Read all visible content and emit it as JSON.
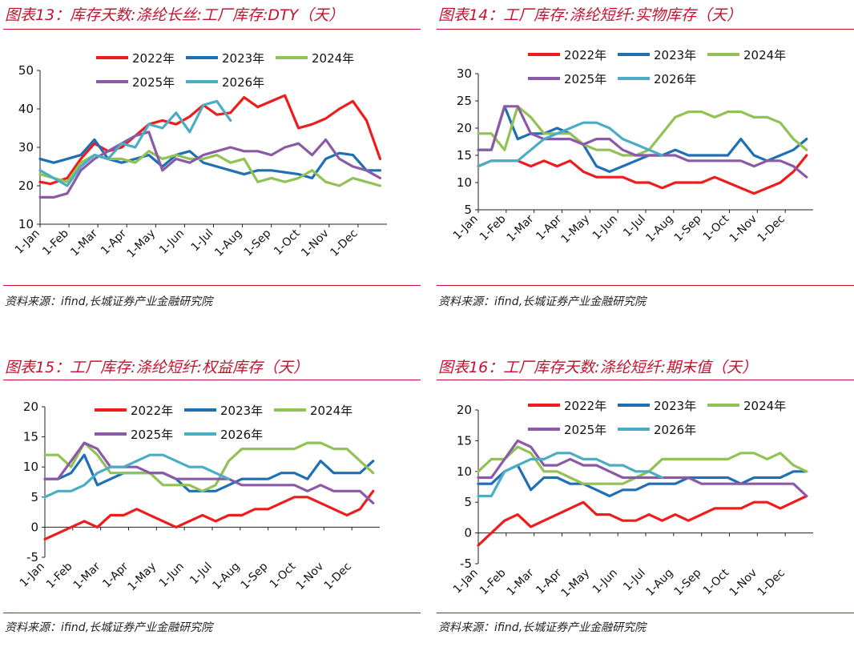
{
  "colors": {
    "accent": "#c8102e",
    "series": {
      "2022年": "#ee1c1c",
      "2023年": "#1f6fb5",
      "2024年": "#92c156",
      "2025年": "#8b5aa6",
      "2026年": "#4bacc6"
    }
  },
  "panels": [
    {
      "title": "图表13：库存天数:涤纶长丝:工厂库存:DTY（天）",
      "source": "资料来源：ifind,长城证券产业金融研究院"
    },
    {
      "title": "图表14：工厂库存:涤纶短纤:实物库存（天）",
      "source": "资料来源：ifind,长城证券产业金融研究院"
    },
    {
      "title": "图表15：工厂库存:涤纶短纤:权益库存（天）",
      "source": "资料来源：ifind,长城证券产业金融研究院"
    },
    {
      "title": "图表16：工厂库存天数:涤纶短纤:期末值（天）",
      "source": "资料来源：ifind,长城证券产业金融研究院"
    }
  ],
  "chart_data": [
    {
      "type": "line",
      "title": "图表13：库存天数:涤纶长丝:工厂库存:DTY（天）",
      "x_ticks": [
        "1-Jan",
        "1-Feb",
        "1-Mar",
        "1-Apr",
        "1-May",
        "1-Jun",
        "1-Jul",
        "1-Aug",
        "1-Sep",
        "1-Oct",
        "1-Nov",
        "1-Dec"
      ],
      "ylim": [
        10,
        50
      ],
      "y_ticks": [
        10,
        20,
        30,
        40,
        50
      ],
      "legend": "top",
      "series": [
        {
          "name": "2022年",
          "x": [
            1,
            2.5,
            5,
            7,
            9,
            11,
            13,
            15,
            17,
            19,
            21,
            23,
            25,
            27,
            29,
            31,
            33,
            35,
            37,
            39,
            41,
            43,
            45,
            47,
            49,
            51
          ],
          "values": [
            21,
            20.5,
            22,
            27,
            31,
            29,
            30,
            33,
            36,
            37,
            36,
            38,
            41,
            38.5,
            39,
            43,
            40.5,
            42,
            43.5,
            35,
            36,
            37.5,
            40,
            42,
            37,
            27
          ]
        },
        {
          "name": "2023年",
          "x": [
            1,
            3,
            5,
            7,
            9,
            11,
            13,
            15,
            17,
            19,
            21,
            23,
            25,
            27,
            29,
            31,
            33,
            35,
            37,
            39,
            41,
            43,
            45,
            47,
            49,
            51
          ],
          "values": [
            27,
            26,
            27,
            28,
            32,
            27,
            26,
            27,
            28,
            25,
            28,
            29,
            26,
            25,
            24,
            23,
            24,
            24,
            23.5,
            23,
            22,
            27,
            28.5,
            28,
            24,
            24
          ]
        },
        {
          "name": "2024年",
          "x": [
            1,
            3,
            5,
            7,
            9,
            11,
            13,
            15,
            17,
            19,
            21,
            23,
            25,
            27,
            29,
            31,
            33,
            35,
            37,
            39,
            41,
            43,
            45,
            47,
            49,
            51
          ],
          "values": [
            23,
            22,
            21,
            26,
            28,
            27,
            27,
            26,
            29,
            27,
            28,
            27,
            27,
            28,
            26,
            27,
            21,
            22,
            21,
            22,
            24,
            21,
            20,
            22,
            21,
            20
          ]
        },
        {
          "name": "2025年",
          "x": [
            1,
            3,
            5,
            7,
            9,
            11,
            13,
            15,
            17,
            19,
            21,
            23,
            25,
            27,
            29,
            31,
            33,
            35,
            37,
            39,
            41,
            43,
            45,
            47,
            49,
            51
          ],
          "values": [
            17,
            17,
            18,
            24,
            27,
            29,
            31,
            33,
            34,
            24,
            27,
            26,
            28,
            29,
            30,
            29,
            29,
            28,
            30,
            31,
            28,
            32,
            27,
            25,
            24,
            22
          ]
        },
        {
          "name": "2026年",
          "x": [
            1,
            3,
            5,
            7,
            9,
            11,
            13,
            15,
            17,
            19,
            21,
            23,
            25,
            27,
            29
          ],
          "values": [
            24,
            22,
            20,
            25,
            28,
            27,
            31,
            30,
            36,
            35,
            39,
            34,
            41,
            42,
            37
          ]
        }
      ]
    },
    {
      "type": "line",
      "title": "图表14：工厂库存:涤纶短纤:实物库存（天）",
      "x_ticks": [
        "1-Jan",
        "1-Feb",
        "1-Mar",
        "1-Apr",
        "1-May",
        "1-Jun",
        "1-Jul",
        "1-Aug",
        "1-Sep",
        "1-Oct",
        "1-Nov",
        "1-Dec"
      ],
      "ylim": [
        5,
        30
      ],
      "y_ticks": [
        5,
        10,
        15,
        20,
        25,
        30
      ],
      "legend": "top",
      "series": [
        {
          "name": "2022年",
          "x": [
            1,
            3,
            5,
            7,
            9,
            11,
            13,
            15,
            17,
            19,
            21,
            23,
            25,
            27,
            29,
            31,
            33,
            35,
            37,
            39,
            41,
            43,
            45,
            47,
            49,
            51
          ],
          "values": [
            13,
            14,
            14,
            14,
            13,
            14,
            13,
            14,
            12,
            11,
            11,
            11,
            10,
            10,
            9,
            10,
            10,
            10,
            11,
            10,
            9,
            8,
            9,
            10,
            12,
            15
          ]
        },
        {
          "name": "2023年",
          "x": [
            1,
            3,
            5,
            7,
            9,
            11,
            13,
            15,
            17,
            19,
            21,
            23,
            25,
            27,
            29,
            31,
            33,
            35,
            37,
            39,
            41,
            43,
            45,
            47,
            49,
            51
          ],
          "values": [
            16,
            16,
            24,
            18,
            19,
            19,
            20,
            19,
            17,
            13,
            12,
            13,
            14,
            15,
            15,
            16,
            15,
            15,
            15,
            15,
            18,
            15,
            14,
            15,
            16,
            18
          ]
        },
        {
          "name": "2024年",
          "x": [
            1,
            3,
            5,
            7,
            9,
            11,
            13,
            15,
            17,
            19,
            21,
            23,
            25,
            27,
            29,
            31,
            33,
            35,
            37,
            39,
            41,
            43,
            45,
            47,
            49,
            51
          ],
          "values": [
            19,
            19,
            16,
            24,
            22,
            19,
            19,
            19,
            17,
            16,
            16,
            15,
            15,
            16,
            19,
            22,
            23,
            23,
            22,
            23,
            23,
            22,
            22,
            21,
            18,
            16
          ]
        },
        {
          "name": "2025年",
          "x": [
            1,
            3,
            5,
            7,
            9,
            11,
            13,
            15,
            17,
            19,
            21,
            23,
            25,
            27,
            29,
            31,
            33,
            35,
            37,
            39,
            41,
            43,
            45,
            47,
            49,
            51
          ],
          "values": [
            16,
            16,
            24,
            24,
            19,
            18,
            18,
            18,
            17,
            18,
            18,
            16,
            15,
            15,
            15,
            15,
            14,
            14,
            14,
            14,
            14,
            13,
            14,
            14,
            13,
            11
          ]
        },
        {
          "name": "2026年",
          "x": [
            1,
            3,
            5,
            7,
            9,
            11,
            13,
            15,
            17,
            19,
            21,
            23,
            25,
            27,
            29
          ],
          "values": [
            13,
            14,
            14,
            14,
            16,
            18,
            19,
            20,
            21,
            21,
            20,
            18,
            17,
            16,
            15
          ]
        }
      ]
    },
    {
      "type": "line",
      "title": "图表15：工厂库存:涤纶短纤:权益库存（天）",
      "x_ticks": [
        "1-Jan",
        "1-Feb",
        "1-Mar",
        "1-Apr",
        "1-May",
        "1-Jun",
        "1-Jul",
        "1-Aug",
        "1-Sep",
        "1-Oct",
        "1-Nov",
        "1-Dec"
      ],
      "ylim": [
        -5,
        20
      ],
      "y_ticks": [
        -5,
        0,
        5,
        10,
        15,
        20
      ],
      "legend": "top",
      "series": [
        {
          "name": "2022年",
          "x": [
            1,
            3,
            5,
            7,
            9,
            11,
            13,
            15,
            17,
            19,
            21,
            23,
            25,
            27,
            29,
            31,
            33,
            35,
            37,
            39,
            41,
            43,
            45,
            47,
            49,
            51
          ],
          "values": [
            -2,
            -1,
            0,
            1,
            0,
            2,
            2,
            3,
            2,
            1,
            0,
            1,
            2,
            1,
            2,
            2,
            3,
            3,
            4,
            5,
            5,
            4,
            3,
            2,
            3,
            6
          ]
        },
        {
          "name": "2023年",
          "x": [
            1,
            3,
            5,
            7,
            9,
            11,
            13,
            15,
            17,
            19,
            21,
            23,
            25,
            27,
            29,
            31,
            33,
            35,
            37,
            39,
            41,
            43,
            45,
            47,
            49,
            51
          ],
          "values": [
            8,
            8,
            9,
            12,
            7,
            8,
            9,
            9,
            9,
            9,
            8,
            6,
            6,
            6,
            7,
            8,
            8,
            8,
            9,
            9,
            8,
            11,
            9,
            9,
            9,
            11
          ]
        },
        {
          "name": "2024年",
          "x": [
            1,
            3,
            5,
            7,
            9,
            11,
            13,
            15,
            17,
            19,
            21,
            23,
            25,
            27,
            29,
            31,
            33,
            35,
            37,
            39,
            41,
            43,
            45,
            47,
            49,
            51
          ],
          "values": [
            12,
            12,
            10,
            14,
            12,
            9,
            9,
            9,
            9,
            7,
            7,
            7,
            6,
            7,
            11,
            13,
            13,
            13,
            13,
            13,
            14,
            14,
            13,
            13,
            11,
            9
          ]
        },
        {
          "name": "2025年",
          "x": [
            1,
            3,
            5,
            7,
            9,
            11,
            13,
            15,
            17,
            19,
            21,
            23,
            25,
            27,
            29,
            31,
            33,
            35,
            37,
            39,
            41,
            43,
            45,
            47,
            49,
            51
          ],
          "values": [
            8,
            8,
            11,
            14,
            13,
            10,
            10,
            10,
            9,
            9,
            8,
            8,
            8,
            8,
            8,
            7,
            7,
            7,
            7,
            7,
            6,
            7,
            6,
            6,
            6,
            4
          ]
        },
        {
          "name": "2026年",
          "x": [
            1,
            3,
            5,
            7,
            9,
            11,
            13,
            15,
            17,
            19,
            21,
            23,
            25,
            27,
            29
          ],
          "values": [
            5,
            6,
            6,
            7,
            9,
            10,
            10,
            11,
            12,
            12,
            11,
            10,
            10,
            9,
            8
          ]
        }
      ]
    },
    {
      "type": "line",
      "title": "图表16：工厂库存天数:涤纶短纤:期末值（天）",
      "x_ticks": [
        "1-Jan",
        "1-Feb",
        "1-Mar",
        "1-Apr",
        "1-May",
        "1-Jun",
        "1-Jul",
        "1-Aug",
        "1-Sep",
        "1-Oct",
        "1-Nov",
        "1-Dec"
      ],
      "ylim": [
        -5,
        20
      ],
      "y_ticks": [
        -5,
        0,
        5,
        10,
        15,
        20
      ],
      "legend": "top",
      "series": [
        {
          "name": "2022年",
          "x": [
            1,
            3,
            5,
            7,
            9,
            11,
            13,
            15,
            17,
            19,
            21,
            23,
            25,
            27,
            29,
            31,
            33,
            35,
            37,
            39,
            41,
            43,
            45,
            47,
            49,
            51
          ],
          "values": [
            -2,
            0,
            2,
            3,
            1,
            2,
            3,
            4,
            5,
            3,
            3,
            2,
            2,
            3,
            2,
            3,
            2,
            3,
            4,
            4,
            4,
            5,
            5,
            4,
            5,
            6
          ]
        },
        {
          "name": "2023年",
          "x": [
            1,
            3,
            5,
            7,
            9,
            11,
            13,
            15,
            17,
            19,
            21,
            23,
            25,
            27,
            29,
            31,
            33,
            35,
            37,
            39,
            41,
            43,
            45,
            47,
            49,
            51
          ],
          "values": [
            8,
            8,
            10,
            11,
            7,
            9,
            9,
            8,
            8,
            7,
            6,
            7,
            7,
            8,
            8,
            8,
            9,
            9,
            9,
            9,
            8,
            9,
            9,
            9,
            10,
            10
          ]
        },
        {
          "name": "2024年",
          "x": [
            1,
            3,
            5,
            7,
            9,
            11,
            13,
            15,
            17,
            19,
            21,
            23,
            25,
            27,
            29,
            31,
            33,
            35,
            37,
            39,
            41,
            43,
            45,
            47,
            49,
            51
          ],
          "values": [
            10,
            12,
            12,
            14,
            13,
            10,
            10,
            9,
            8,
            8,
            8,
            8,
            9,
            10,
            12,
            12,
            12,
            12,
            12,
            12,
            13,
            13,
            12,
            13,
            11,
            10
          ]
        },
        {
          "name": "2025年",
          "x": [
            1,
            3,
            5,
            7,
            9,
            11,
            13,
            15,
            17,
            19,
            21,
            23,
            25,
            27,
            29,
            31,
            33,
            35,
            37,
            39,
            41,
            43,
            45,
            47,
            49,
            51
          ],
          "values": [
            9,
            9,
            12,
            15,
            14,
            11,
            11,
            12,
            11,
            11,
            10,
            9,
            9,
            9,
            9,
            9,
            9,
            8,
            8,
            8,
            8,
            8,
            8,
            8,
            8,
            6
          ]
        },
        {
          "name": "2026年",
          "x": [
            1,
            3,
            5,
            7,
            9,
            11,
            13,
            15,
            17,
            19,
            21,
            23,
            25,
            27,
            29
          ],
          "values": [
            6,
            6,
            10,
            11,
            12,
            12,
            13,
            13,
            12,
            12,
            11,
            11,
            10,
            10,
            9
          ]
        }
      ]
    }
  ]
}
